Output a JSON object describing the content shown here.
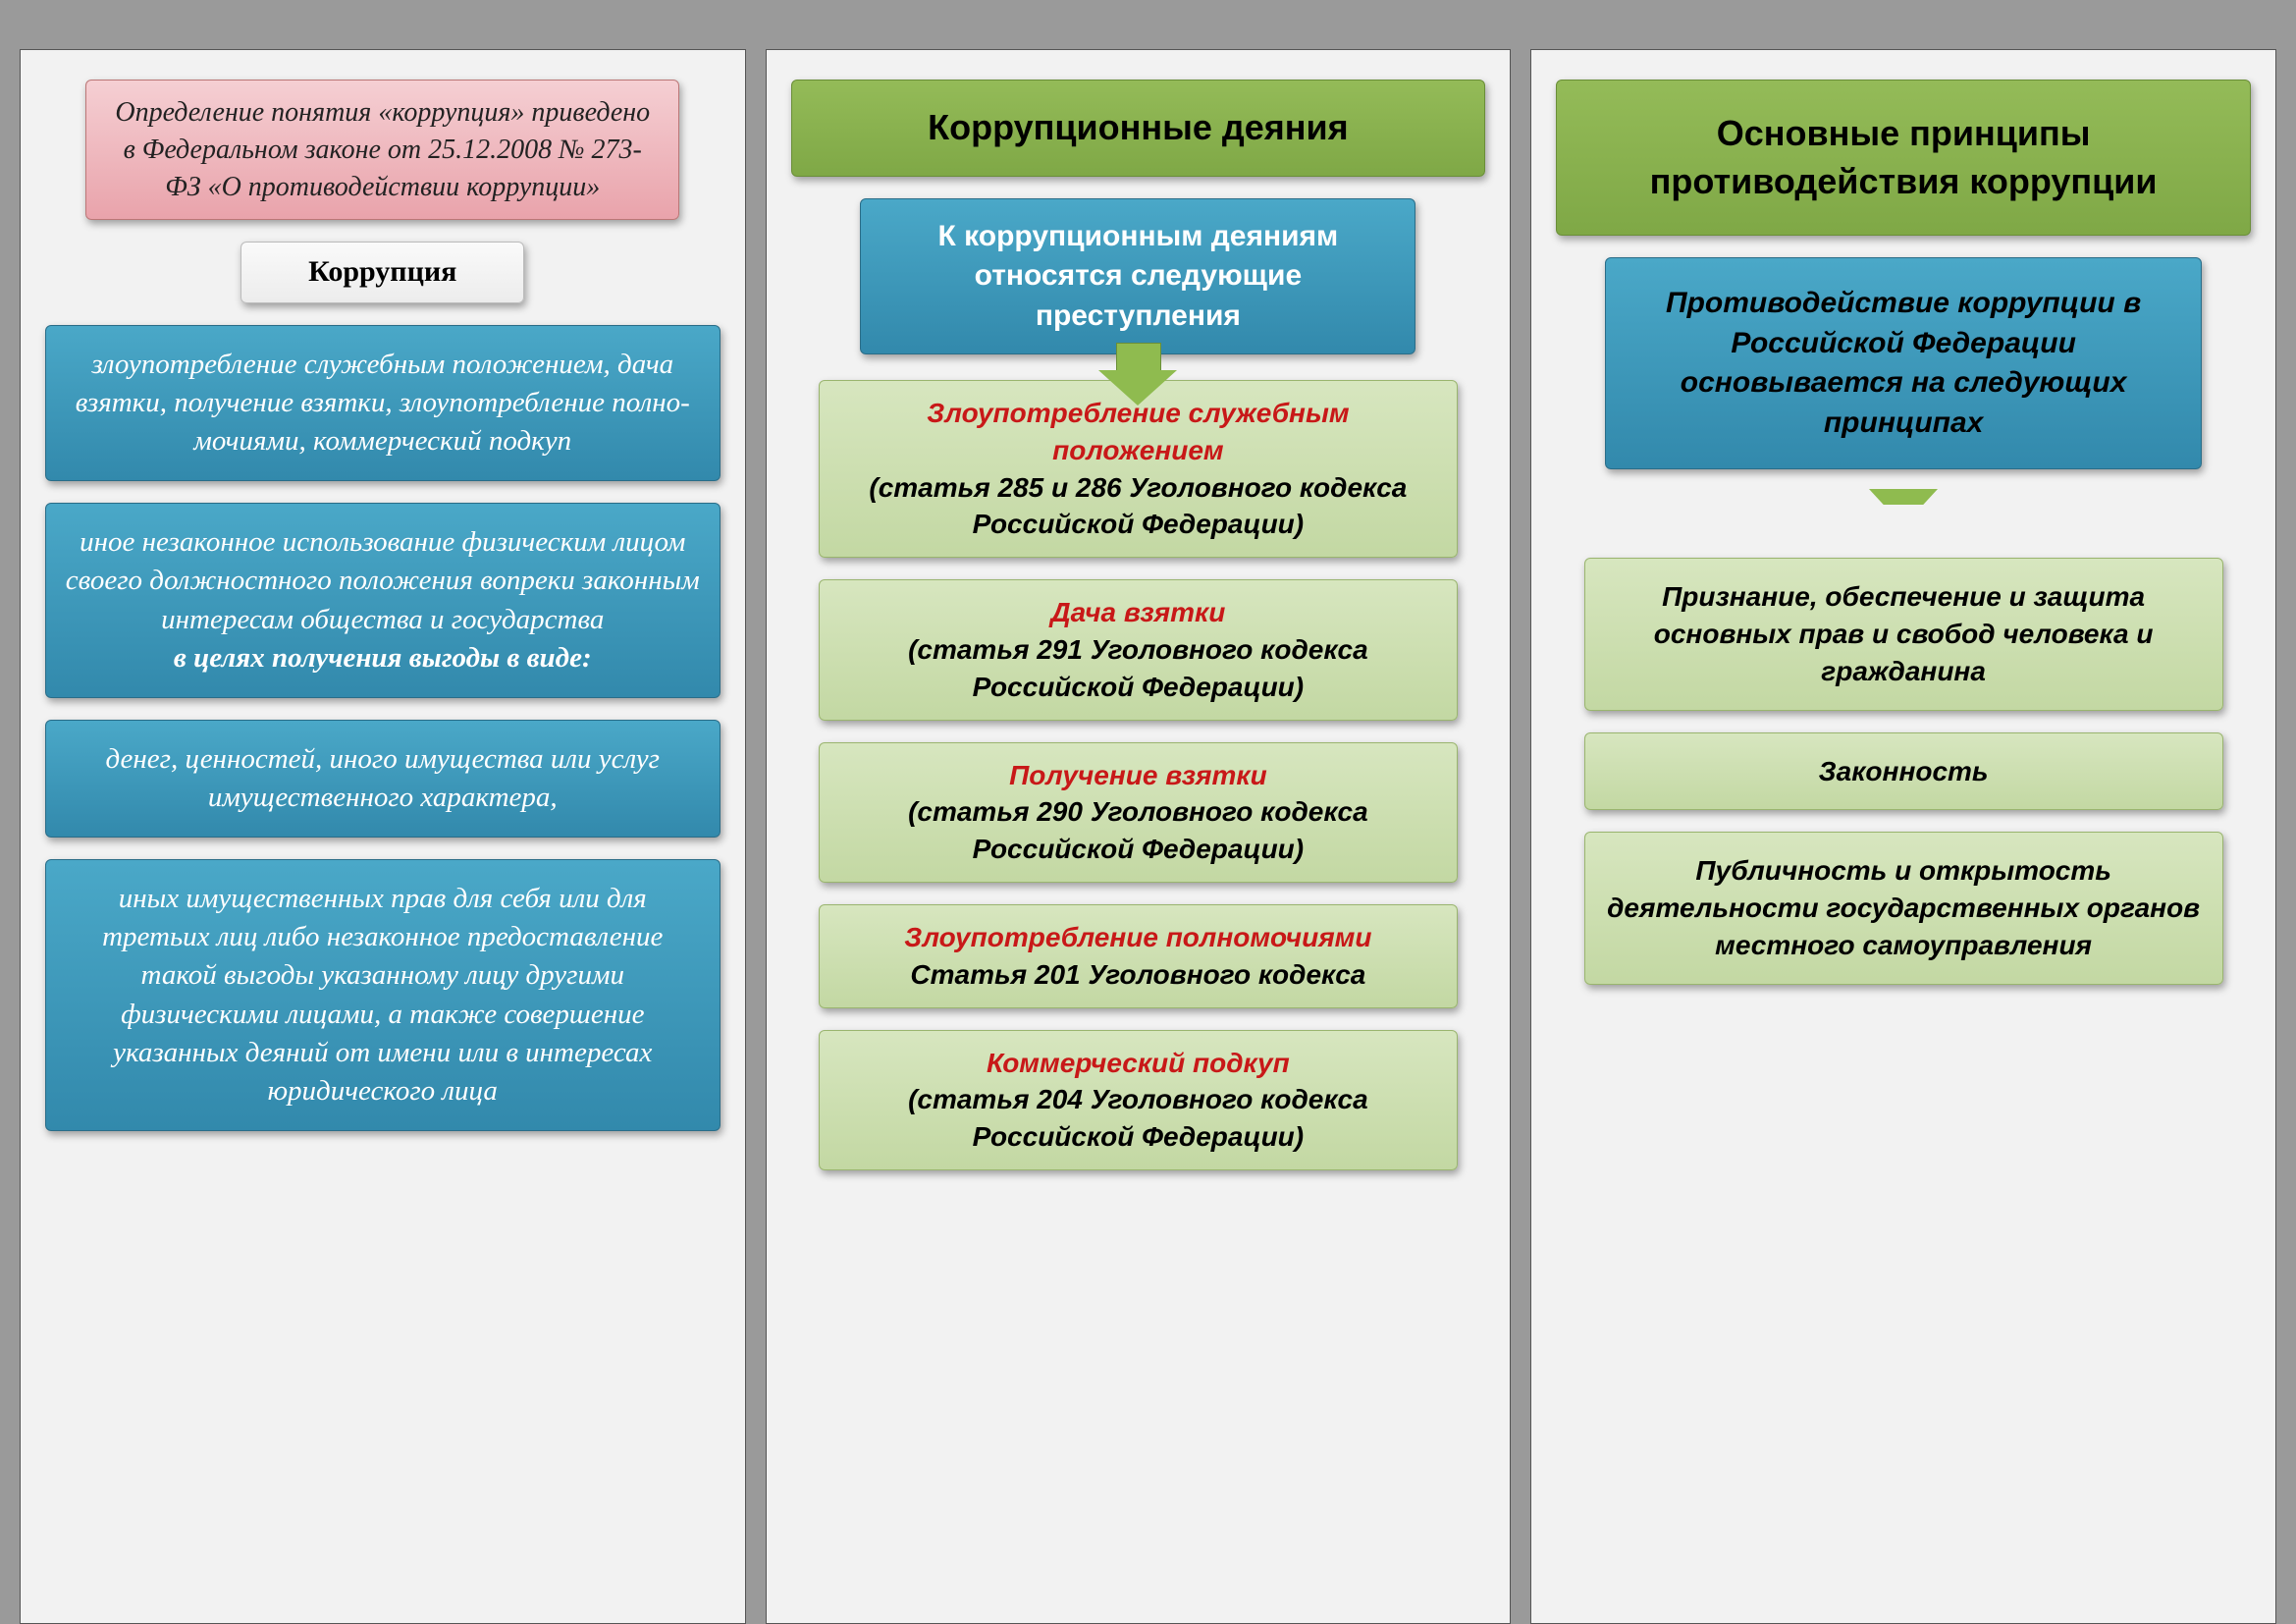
{
  "colors": {
    "page_bg": "#9a9a9a",
    "panel_bg": "#f2f2f2",
    "pink_top": "#f5cfd3",
    "pink_bot": "#e9a3ab",
    "blue_top": "#4aa8c8",
    "blue_bot": "#3289ac",
    "green_hdr_top": "#94bb58",
    "green_hdr_bot": "#7fa846",
    "green_item_top": "#d7e6bf",
    "green_item_bot": "#c3d8a3",
    "red_text": "#c81818"
  },
  "col1": {
    "intro": "Определение понятия «коррупция» приведено в Федеральном законе от 25.12.2008 № 273-ФЗ «О противодействии коррупции»",
    "title": "Коррупция",
    "b1": "злоупотребление служебным положением, дача взятки, получение взятки, злоупотребление полно­мочиями, коммерческий подкуп",
    "b2a": "иное незаконное использование физическим лицом своего должностного положения вопреки законным интересам общества и государства",
    "b2b": "в целях получения выгоды в виде:",
    "b3": "денег, ценностей, иного имущества или услуг имущественного характера,",
    "b4": "иных имущественных прав для себя или для третьих лиц либо незаконное предоставление такой выгоды указанному лицу другими физическими лицами, а также со­вершение указанных деяний от имени или в интересах юридического лица"
  },
  "col2": {
    "header": "Коррупционные деяния",
    "sub": "К коррупционным деяниям относятся следующие преступления",
    "items": [
      {
        "red": "Злоупотребление служебным положением",
        "blk": "(статья 285 и 286 Уголовного кодекса Российской Федерации)"
      },
      {
        "red": "Дача взятки",
        "blk": "(статья 291 Уголовного кодекса Российской Федерации)"
      },
      {
        "red": "Получение взятки",
        "blk": "(статья 290 Уголовного кодекса Российской Федерации)"
      },
      {
        "red": "Злоупотребление полномочиями",
        "blk": "Статья 201 Уголовного кодекса"
      },
      {
        "red": "Коммерческий подкуп",
        "blk": "(статья 204 Уголовного кодекса Российской Федерации)"
      }
    ]
  },
  "col3": {
    "header": "Основные принципы противодействия коррупции",
    "sub": "Противодействие коррупции в Российской Федерации основывается на следующих принципах",
    "items": [
      "Признание, обеспечение и защита основных прав и свобод человека и гражданина",
      "Законность",
      "Публичность и открытость деятельности государственных органов местного самоуправления"
    ]
  }
}
